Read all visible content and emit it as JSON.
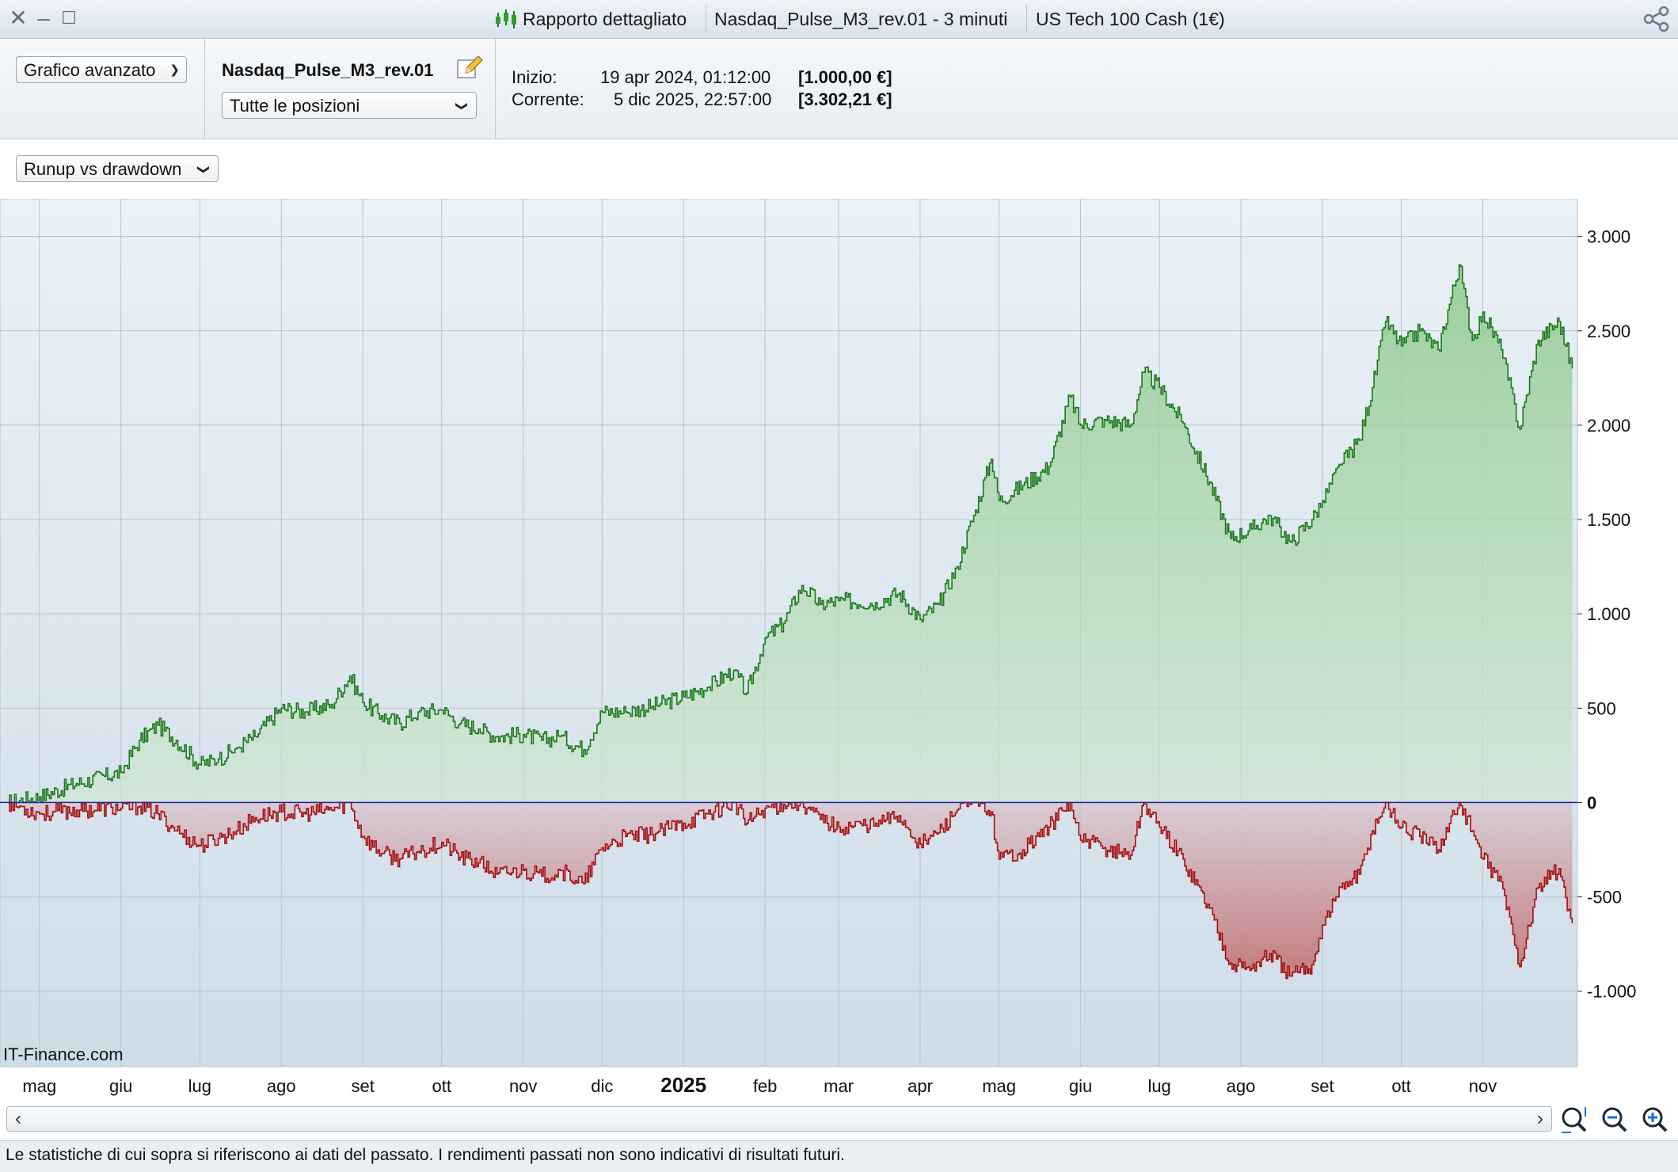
{
  "window": {
    "report_title": "Rapporto dettagliato",
    "strategy_tab": "Nasdaq_Pulse_M3_rev.01 - 3 minuti",
    "instrument_tab": "US Tech 100 Cash (1€)"
  },
  "toolbar": {
    "chart_mode": "Grafico avanzato",
    "strategy_name": "Nasdaq_Pulse_M3_rev.01",
    "positions_filter": "Tutte le posizioni",
    "start_label": "Inizio:",
    "start_date": "19 apr 2024, 01:12:00",
    "start_value": "[1.000,00 €]",
    "current_label": "Corrente:",
    "current_date": "5 dic 2025, 22:57:00",
    "current_value": "[3.302,21 €]"
  },
  "chart_selector": "Runup vs drawdown",
  "watermark": "IT-Finance.com",
  "colors": {
    "runup_line": "#1c7a1c",
    "drawdown_line": "#a50f0f",
    "zero_line": "#1f1fa8",
    "background_top": "#eaf1f7",
    "background_bottom": "#cfdde8"
  },
  "chart_data": {
    "type": "area",
    "y_range": [
      -1400,
      3200
    ],
    "y_ticks": [
      3000,
      2500,
      2000,
      1500,
      1000,
      500,
      0,
      -500,
      -1000
    ],
    "y_tick_labels": [
      "3.000",
      "2.500",
      "2.000",
      "1.500",
      "1.000",
      "500",
      "0",
      "-500",
      "-1.000"
    ],
    "x_range": [
      "2024-04-19",
      "2025-12-05"
    ],
    "x_ticks": [
      {
        "label": "mag",
        "date": "2024-05-01"
      },
      {
        "label": "giu",
        "date": "2024-06-01"
      },
      {
        "label": "lug",
        "date": "2024-07-01"
      },
      {
        "label": "ago",
        "date": "2024-08-01"
      },
      {
        "label": "set",
        "date": "2024-09-01"
      },
      {
        "label": "ott",
        "date": "2024-10-01"
      },
      {
        "label": "nov",
        "date": "2024-11-01"
      },
      {
        "label": "dic",
        "date": "2024-12-01"
      },
      {
        "label": "2025",
        "date": "2025-01-01",
        "bold": true
      },
      {
        "label": "feb",
        "date": "2025-02-01"
      },
      {
        "label": "mar",
        "date": "2025-03-01"
      },
      {
        "label": "apr",
        "date": "2025-04-01"
      },
      {
        "label": "mag",
        "date": "2025-05-01"
      },
      {
        "label": "giu",
        "date": "2025-06-01"
      },
      {
        "label": "lug",
        "date": "2025-07-01"
      },
      {
        "label": "ago",
        "date": "2025-08-01"
      },
      {
        "label": "set",
        "date": "2025-09-01"
      },
      {
        "label": "ott",
        "date": "2025-10-01"
      },
      {
        "label": "nov",
        "date": "2025-11-01"
      }
    ],
    "grid": true,
    "series": [
      {
        "key": "runup",
        "points": [
          [
            "2024-04-19",
            0
          ],
          [
            "2024-05-01",
            30
          ],
          [
            "2024-05-15",
            100
          ],
          [
            "2024-06-01",
            160
          ],
          [
            "2024-06-08",
            330
          ],
          [
            "2024-06-15",
            410
          ],
          [
            "2024-06-22",
            330
          ],
          [
            "2024-07-01",
            200
          ],
          [
            "2024-07-08",
            230
          ],
          [
            "2024-07-15",
            290
          ],
          [
            "2024-07-22",
            350
          ],
          [
            "2024-08-01",
            500
          ],
          [
            "2024-08-10",
            480
          ],
          [
            "2024-08-20",
            520
          ],
          [
            "2024-08-27",
            670
          ],
          [
            "2024-09-01",
            530
          ],
          [
            "2024-09-08",
            460
          ],
          [
            "2024-09-15",
            420
          ],
          [
            "2024-09-22",
            480
          ],
          [
            "2024-10-01",
            490
          ],
          [
            "2024-10-08",
            420
          ],
          [
            "2024-10-15",
            390
          ],
          [
            "2024-10-22",
            350
          ],
          [
            "2024-11-01",
            360
          ],
          [
            "2024-11-08",
            330
          ],
          [
            "2024-11-15",
            350
          ],
          [
            "2024-11-24",
            280
          ],
          [
            "2024-12-01",
            480
          ],
          [
            "2024-12-10",
            480
          ],
          [
            "2024-12-20",
            510
          ],
          [
            "2025-01-01",
            560
          ],
          [
            "2025-01-10",
            610
          ],
          [
            "2025-01-20",
            700
          ],
          [
            "2025-01-25",
            580
          ],
          [
            "2025-02-01",
            870
          ],
          [
            "2025-02-08",
            950
          ],
          [
            "2025-02-15",
            1150
          ],
          [
            "2025-02-22",
            1050
          ],
          [
            "2025-03-01",
            1070
          ],
          [
            "2025-03-15",
            1060
          ],
          [
            "2025-03-24",
            1110
          ],
          [
            "2025-04-01",
            970
          ],
          [
            "2025-04-08",
            1050
          ],
          [
            "2025-04-15",
            1250
          ],
          [
            "2025-04-22",
            1550
          ],
          [
            "2025-04-28",
            1820
          ],
          [
            "2025-05-01",
            1600
          ],
          [
            "2025-05-10",
            1680
          ],
          [
            "2025-05-20",
            1780
          ],
          [
            "2025-05-28",
            2150
          ],
          [
            "2025-06-01",
            2000
          ],
          [
            "2025-06-10",
            2030
          ],
          [
            "2025-06-20",
            2000
          ],
          [
            "2025-06-25",
            2280
          ],
          [
            "2025-07-01",
            2200
          ],
          [
            "2025-07-10",
            2010
          ],
          [
            "2025-07-20",
            1700
          ],
          [
            "2025-07-28",
            1400
          ],
          [
            "2025-08-05",
            1450
          ],
          [
            "2025-08-12",
            1520
          ],
          [
            "2025-08-20",
            1380
          ],
          [
            "2025-08-28",
            1500
          ],
          [
            "2025-09-01",
            1600
          ],
          [
            "2025-09-08",
            1790
          ],
          [
            "2025-09-15",
            1920
          ],
          [
            "2025-09-20",
            2200
          ],
          [
            "2025-09-25",
            2550
          ],
          [
            "2025-10-01",
            2420
          ],
          [
            "2025-10-08",
            2500
          ],
          [
            "2025-10-15",
            2400
          ],
          [
            "2025-10-23",
            2850
          ],
          [
            "2025-10-28",
            2450
          ],
          [
            "2025-11-01",
            2600
          ],
          [
            "2025-11-08",
            2400
          ],
          [
            "2025-11-15",
            1980
          ],
          [
            "2025-11-22",
            2450
          ],
          [
            "2025-11-30",
            2550
          ],
          [
            "2025-12-05",
            2300
          ]
        ]
      },
      {
        "key": "drawdown",
        "points": [
          [
            "2024-04-19",
            0
          ],
          [
            "2024-05-01",
            -60
          ],
          [
            "2024-05-15",
            -40
          ],
          [
            "2024-06-01",
            -30
          ],
          [
            "2024-06-08",
            -20
          ],
          [
            "2024-06-15",
            -60
          ],
          [
            "2024-06-22",
            -150
          ],
          [
            "2024-07-01",
            -230
          ],
          [
            "2024-07-08",
            -190
          ],
          [
            "2024-07-15",
            -150
          ],
          [
            "2024-07-22",
            -80
          ],
          [
            "2024-08-01",
            -50
          ],
          [
            "2024-08-10",
            -60
          ],
          [
            "2024-08-20",
            -40
          ],
          [
            "2024-08-27",
            0
          ],
          [
            "2024-09-01",
            -180
          ],
          [
            "2024-09-08",
            -270
          ],
          [
            "2024-09-15",
            -300
          ],
          [
            "2024-09-22",
            -260
          ],
          [
            "2024-10-01",
            -210
          ],
          [
            "2024-10-08",
            -290
          ],
          [
            "2024-10-15",
            -320
          ],
          [
            "2024-10-22",
            -380
          ],
          [
            "2024-11-01",
            -360
          ],
          [
            "2024-11-08",
            -390
          ],
          [
            "2024-11-15",
            -360
          ],
          [
            "2024-11-24",
            -430
          ],
          [
            "2024-12-01",
            -240
          ],
          [
            "2024-12-10",
            -180
          ],
          [
            "2024-12-20",
            -170
          ],
          [
            "2025-01-01",
            -110
          ],
          [
            "2025-01-10",
            -60
          ],
          [
            "2025-01-20",
            0
          ],
          [
            "2025-01-25",
            -110
          ],
          [
            "2025-02-01",
            -30
          ],
          [
            "2025-02-08",
            -10
          ],
          [
            "2025-02-15",
            0
          ],
          [
            "2025-02-22",
            -90
          ],
          [
            "2025-03-01",
            -130
          ],
          [
            "2025-03-15",
            -110
          ],
          [
            "2025-03-24",
            -70
          ],
          [
            "2025-04-01",
            -220
          ],
          [
            "2025-04-08",
            -160
          ],
          [
            "2025-04-15",
            -40
          ],
          [
            "2025-04-22",
            0
          ],
          [
            "2025-04-28",
            -50
          ],
          [
            "2025-05-01",
            -300
          ],
          [
            "2025-05-10",
            -250
          ],
          [
            "2025-05-20",
            -130
          ],
          [
            "2025-05-28",
            0
          ],
          [
            "2025-06-01",
            -200
          ],
          [
            "2025-06-10",
            -240
          ],
          [
            "2025-06-20",
            -280
          ],
          [
            "2025-06-25",
            0
          ],
          [
            "2025-07-01",
            -130
          ],
          [
            "2025-07-10",
            -300
          ],
          [
            "2025-07-20",
            -560
          ],
          [
            "2025-07-28",
            -850
          ],
          [
            "2025-08-05",
            -880
          ],
          [
            "2025-08-12",
            -800
          ],
          [
            "2025-08-20",
            -920
          ],
          [
            "2025-08-28",
            -860
          ],
          [
            "2025-09-01",
            -650
          ],
          [
            "2025-09-08",
            -450
          ],
          [
            "2025-09-15",
            -380
          ],
          [
            "2025-09-20",
            -150
          ],
          [
            "2025-09-25",
            0
          ],
          [
            "2025-10-01",
            -130
          ],
          [
            "2025-10-08",
            -180
          ],
          [
            "2025-10-15",
            -250
          ],
          [
            "2025-10-23",
            0
          ],
          [
            "2025-10-28",
            -150
          ],
          [
            "2025-11-01",
            -300
          ],
          [
            "2025-11-08",
            -420
          ],
          [
            "2025-11-15",
            -870
          ],
          [
            "2025-11-22",
            -450
          ],
          [
            "2025-11-30",
            -350
          ],
          [
            "2025-12-05",
            -640
          ]
        ]
      }
    ]
  },
  "status_text": "Le statistiche di cui sopra si riferiscono ai dati del passato. I rendimenti passati non sono indicativi di risultati futuri."
}
